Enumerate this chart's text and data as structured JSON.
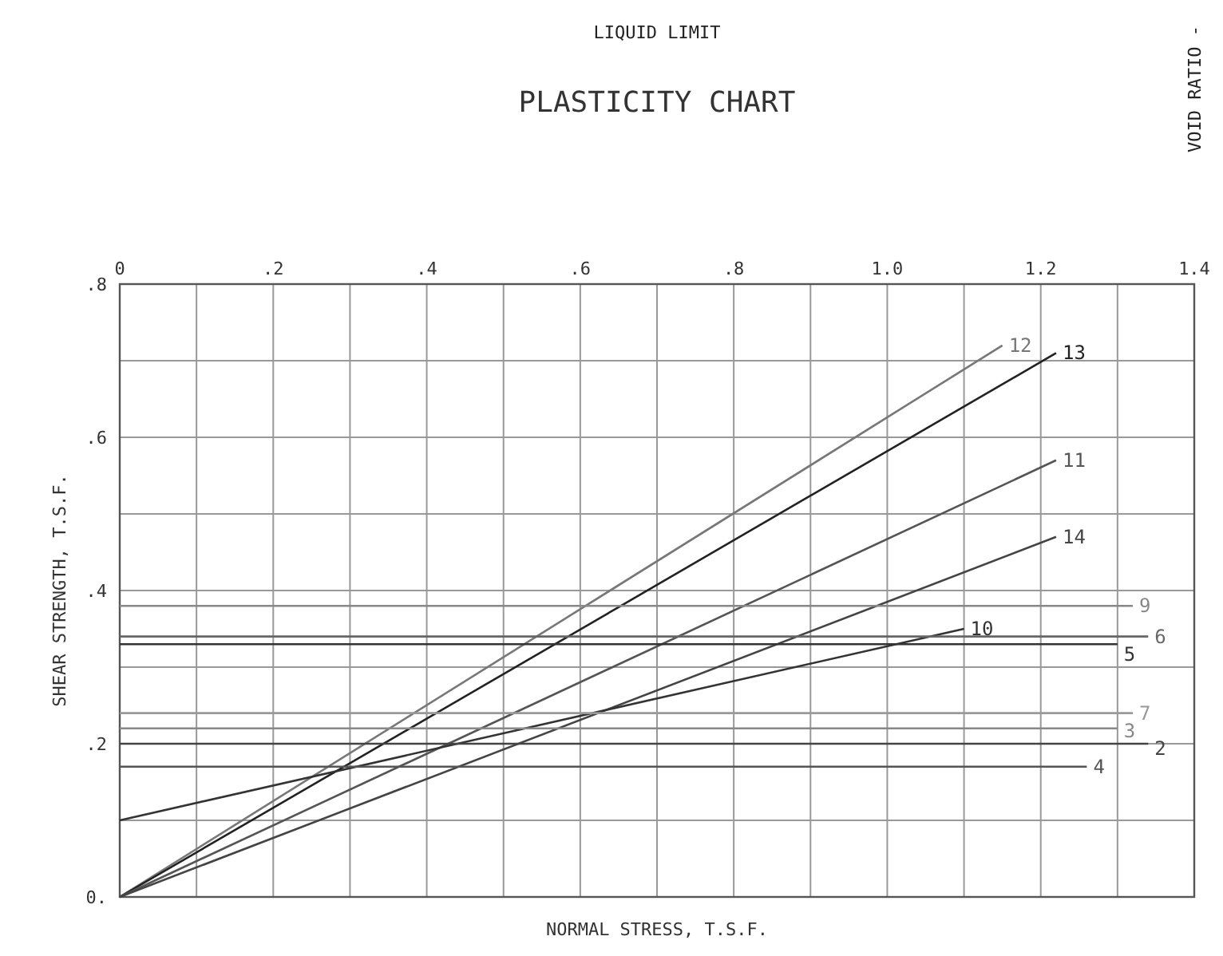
{
  "chart_data": {
    "type": "line",
    "title": "PLASTICITY CHART",
    "xlabel": "NORMAL STRESS, T.S.F.",
    "ylabel": "SHEAR STRENGTH, T.S.F.",
    "annotations": [
      "LIQUID LIMIT",
      "VOID RATIO -"
    ],
    "xlim": [
      0,
      1.4
    ],
    "ylim": [
      0,
      0.8
    ],
    "xticks": [
      {
        "value": 0,
        "label": "0"
      },
      {
        "value": 0.1,
        "label": null
      },
      {
        "value": 0.2,
        "label": ".2"
      },
      {
        "value": 0.3,
        "label": null
      },
      {
        "value": 0.4,
        "label": ".4"
      },
      {
        "value": 0.5,
        "label": null
      },
      {
        "value": 0.6,
        "label": ".6"
      },
      {
        "value": 0.7,
        "label": null
      },
      {
        "value": 0.8,
        "label": ".8"
      },
      {
        "value": 0.9,
        "label": null
      },
      {
        "value": 1.0,
        "label": "1.0"
      },
      {
        "value": 1.1,
        "label": null
      },
      {
        "value": 1.2,
        "label": "1.2"
      },
      {
        "value": 1.3,
        "label": null
      },
      {
        "value": 1.4,
        "label": "1.4"
      }
    ],
    "yticks": [
      {
        "value": 0,
        "label": "0."
      },
      {
        "value": 0.1,
        "label": null
      },
      {
        "value": 0.2,
        "label": ".2"
      },
      {
        "value": 0.3,
        "label": null
      },
      {
        "value": 0.4,
        "label": ".4"
      },
      {
        "value": 0.5,
        "label": null
      },
      {
        "value": 0.6,
        "label": ".6"
      },
      {
        "value": 0.7,
        "label": null
      },
      {
        "value": 0.8,
        "label": ".8"
      }
    ],
    "grid": true,
    "marker": "none",
    "line_style": "solid",
    "series": [
      {
        "name": "12",
        "color": "#777777",
        "x": [
          0,
          1.15
        ],
        "values": [
          0,
          0.72
        ]
      },
      {
        "name": "13",
        "color": "#222222",
        "x": [
          0,
          1.22
        ],
        "values": [
          0,
          0.71
        ]
      },
      {
        "name": "11",
        "color": "#555555",
        "x": [
          0,
          1.22
        ],
        "values": [
          0,
          0.57
        ]
      },
      {
        "name": "14",
        "color": "#444444",
        "x": [
          0,
          1.22
        ],
        "values": [
          0,
          0.47
        ]
      },
      {
        "name": "10",
        "color": "#333333",
        "x": [
          0,
          1.1
        ],
        "values": [
          0.1,
          0.35
        ]
      },
      {
        "name": "9",
        "color": "#888888",
        "x": [
          0,
          1.32
        ],
        "values": [
          0.38,
          0.38
        ]
      },
      {
        "name": "6",
        "color": "#666666",
        "x": [
          0,
          1.34
        ],
        "values": [
          0.34,
          0.34
        ]
      },
      {
        "name": "5",
        "color": "#333333",
        "x": [
          0,
          1.3
        ],
        "values": [
          0.33,
          0.33
        ]
      },
      {
        "name": "7",
        "color": "#999999",
        "x": [
          0,
          1.32
        ],
        "values": [
          0.24,
          0.24
        ]
      },
      {
        "name": "3",
        "color": "#888888",
        "x": [
          0,
          1.3
        ],
        "values": [
          0.22,
          0.22
        ]
      },
      {
        "name": "2",
        "color": "#444444",
        "x": [
          0,
          1.34
        ],
        "values": [
          0.2,
          0.2
        ]
      },
      {
        "name": "4",
        "color": "#555555",
        "x": [
          0,
          1.26
        ],
        "values": [
          0.17,
          0.17
        ]
      }
    ]
  }
}
